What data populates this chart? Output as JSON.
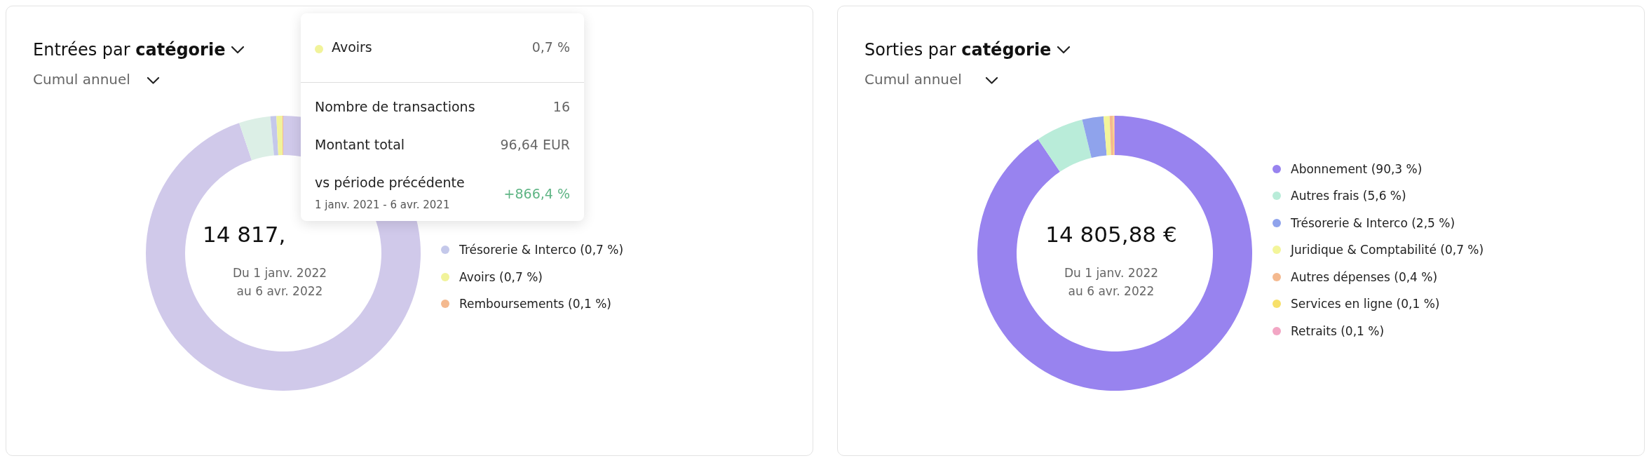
{
  "chart_data": [
    {
      "type": "donut",
      "title": "Entrées par catégorie",
      "subtitle": "Cumul annuel",
      "legend": "right",
      "categories": [
        null,
        null,
        "Trésorerie & Interco (0,7 %)",
        "Avoirs (0,7 %)",
        "Remboursements (0,1 %)"
      ],
      "values": [
        94.8,
        3.7,
        0.7,
        0.7,
        0.1
      ],
      "colors": [
        "#d0c9ea",
        "#dcefe6",
        "#c4c8ea",
        "#f1f39a",
        "#f4b98f"
      ],
      "annotations": [
        "14 817,",
        "Du 1 janv. 2022",
        "au 6 avr. 2022",
        "Avoirs",
        "0,7 %",
        "Nombre de transactions",
        "16",
        "Montant total",
        "96,64 EUR",
        "vs période précédente",
        "+866,4 %",
        "1 janv. 2021 - 6 avr. 2021"
      ]
    },
    {
      "type": "donut",
      "title": "Sorties par catégorie",
      "subtitle": "Cumul annuel",
      "legend": "right",
      "categories": [
        "Abonnement (90,3 %)",
        "Autres frais (5,6 %)",
        "Trésorerie & Interco (2,5 %)",
        "Juridique & Comptabilité (0,7 %)",
        "Autres dépenses (0,4 %)",
        "Services en ligne (0,1 %)",
        "Retraits (0,1 %)"
      ],
      "values": [
        90.3,
        5.6,
        2.5,
        0.7,
        0.4,
        0.1,
        0.1
      ],
      "colors": [
        "#9883ef",
        "#b9ecd9",
        "#8fa3ec",
        "#f3f59a",
        "#f4b98f",
        "#f7e06a",
        "#f2a6c4"
      ],
      "annotations": [
        "14 805,88 €",
        "Du 1 janv. 2022",
        "au 6 avr. 2022"
      ]
    }
  ]
}
